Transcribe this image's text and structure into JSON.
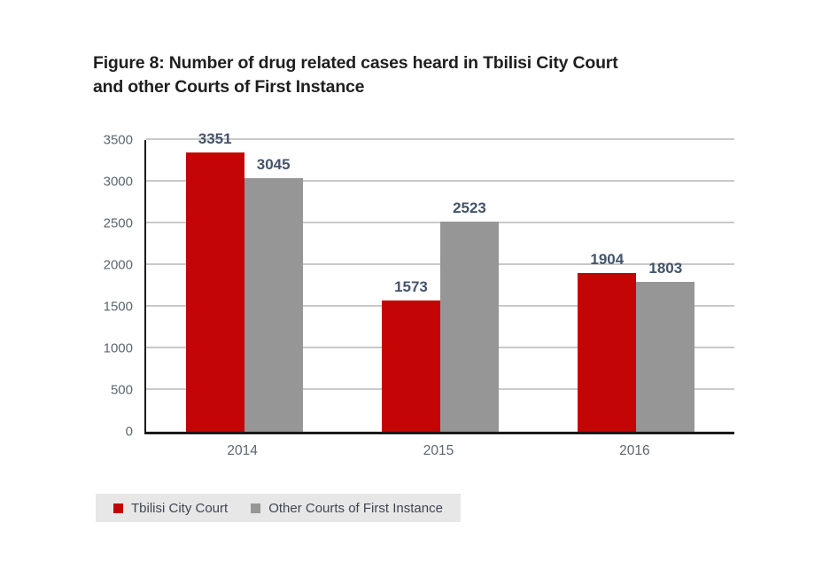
{
  "title": {
    "line1": "Figure 8: Number of drug related cases heard in Tbilisi City Court",
    "line2": "and other Courts of First Instance"
  },
  "chart_data": {
    "type": "bar",
    "categories": [
      "2014",
      "2015",
      "2016"
    ],
    "series": [
      {
        "name": "Tbilisi City Court",
        "color": "#c40505",
        "values": [
          3351,
          1573,
          1904
        ]
      },
      {
        "name": "Other Courts of First Instance",
        "color": "#969696",
        "values": [
          3045,
          2523,
          1803
        ]
      }
    ],
    "title": "Figure 8: Number of drug related cases heard in Tbilisi City Court and other Courts of First Instance",
    "xlabel": "",
    "ylabel": "",
    "ylim": [
      0,
      3500
    ],
    "yticks": [
      0,
      500,
      1000,
      1500,
      2000,
      2500,
      3000,
      3500
    ],
    "grid": true,
    "data_labels": true,
    "legend_position": "bottom-left"
  },
  "colors": {
    "series1": "#c40505",
    "series2": "#969696",
    "gridline": "#c9c9c9",
    "axis": "#1a1a1a",
    "tick_text": "#5b6670",
    "data_label_text": "#44546a",
    "legend_background": "#e7e7e7",
    "legend_text": "#3d4653",
    "title_text": "#1f1f1f",
    "page_background": "#ffffff"
  }
}
